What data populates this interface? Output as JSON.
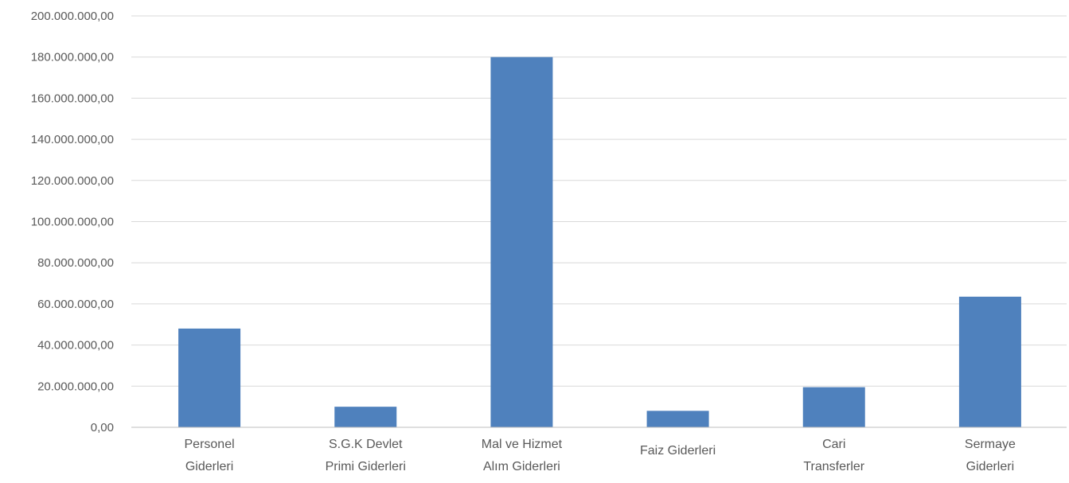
{
  "chart_data": {
    "type": "bar",
    "title": "",
    "xlabel": "",
    "ylabel": "",
    "categories": [
      [
        "Personel",
        "Giderleri"
      ],
      [
        "S.G.K Devlet",
        "Primi Giderleri"
      ],
      [
        "Mal ve Hizmet",
        "Alım Giderleri"
      ],
      [
        "Faiz Giderleri"
      ],
      [
        "Cari",
        "Transferler"
      ],
      [
        "Sermaye",
        "Giderleri"
      ]
    ],
    "values": [
      48000000,
      10000000,
      180000000,
      8000000,
      19500000,
      63500000
    ],
    "ylim": [
      0,
      200000000
    ],
    "yticks": [
      0,
      20000000,
      40000000,
      60000000,
      80000000,
      100000000,
      120000000,
      140000000,
      160000000,
      180000000,
      200000000
    ],
    "ytick_labels": [
      "0,00",
      "20.000.000,00",
      "40.000.000,00",
      "60.000.000,00",
      "80.000.000,00",
      "100.000.000,00",
      "120.000.000,00",
      "140.000.000,00",
      "160.000.000,00",
      "180.000.000,00",
      "200.000.000,00"
    ],
    "grid": true,
    "legend": "none",
    "bar_color": "#4f81bd",
    "grid_color": "#d9d9d9",
    "axis_color": "#bfbfbf",
    "label_color": "#595959"
  }
}
